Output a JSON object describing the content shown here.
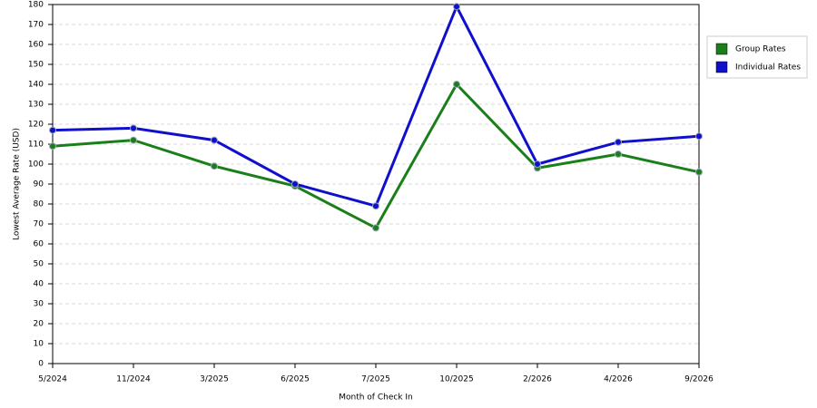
{
  "chart_data": {
    "type": "line",
    "x_label": "Month of Check In",
    "y_label": "Lowest Average Rate (USD)",
    "categories": [
      "5/2024",
      "11/2024",
      "3/2025",
      "6/2025",
      "7/2025",
      "10/2025",
      "2/2026",
      "4/2026",
      "9/2026"
    ],
    "series": [
      {
        "name": "Group Rates",
        "color": "#1a7f1a",
        "values": [
          109,
          112,
          99,
          89,
          68,
          140,
          98,
          105,
          96
        ]
      },
      {
        "name": "Individual Rates",
        "color": "#1010cc",
        "values": [
          117,
          118,
          112,
          90,
          79,
          179,
          100,
          111,
          114
        ]
      }
    ],
    "ylim": [
      0,
      180
    ],
    "yticks": [
      0,
      10,
      20,
      30,
      40,
      50,
      60,
      70,
      80,
      90,
      100,
      110,
      120,
      130,
      140,
      150,
      160,
      170,
      180
    ],
    "grid": true,
    "legend": "right"
  }
}
